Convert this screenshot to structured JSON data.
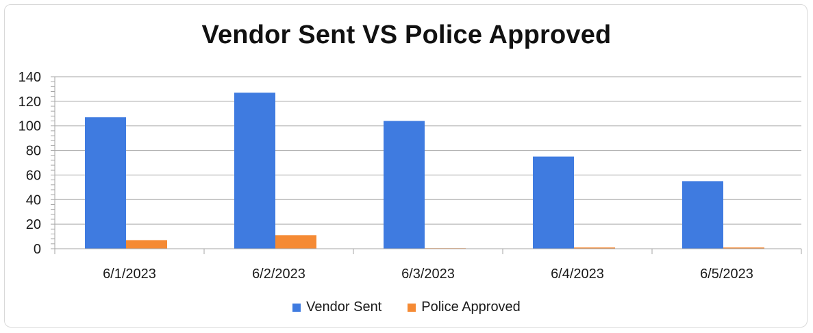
{
  "chart_data": {
    "type": "bar",
    "title": "Vendor Sent VS Police Approved",
    "categories": [
      "6/1/2023",
      "6/2/2023",
      "6/3/2023",
      "6/4/2023",
      "6/5/2023"
    ],
    "series": [
      {
        "name": "Vendor Sent",
        "color": "#3F7BE0",
        "values": [
          107,
          127,
          104,
          75,
          55
        ]
      },
      {
        "name": "Police Approved",
        "color": "#F58A34",
        "values": [
          7,
          11,
          0,
          1,
          1
        ]
      }
    ],
    "ylim": [
      0,
      140
    ],
    "yticks": [
      "0",
      "20",
      "40",
      "60",
      "80",
      "100",
      "120",
      "140"
    ],
    "grid": true,
    "legend_position": "bottom"
  }
}
